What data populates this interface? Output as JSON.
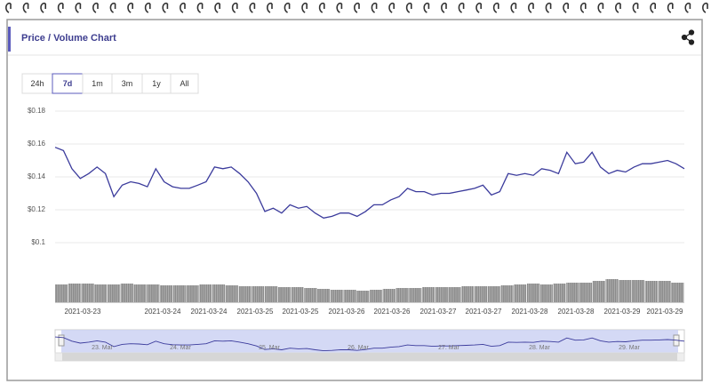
{
  "header": {
    "title": "Price / Volume Chart"
  },
  "range_buttons": {
    "options": [
      "24h",
      "7d",
      "1m",
      "3m",
      "1y",
      "All"
    ],
    "selected": 1
  },
  "chart_data": {
    "type": "line",
    "series": [
      {
        "color": "#3b3b9c",
        "values": [
          0.158,
          0.156,
          0.145,
          0.139,
          0.142,
          0.146,
          0.142,
          0.128,
          0.135,
          0.137,
          0.136,
          0.134,
          0.145,
          0.137,
          0.134,
          0.133,
          0.133,
          0.135,
          0.137,
          0.146,
          0.145,
          0.146,
          0.142,
          0.137,
          0.13,
          0.119,
          0.121,
          0.118,
          0.123,
          0.121,
          0.122,
          0.118,
          0.115,
          0.116,
          0.118,
          0.118,
          0.116,
          0.119,
          0.123,
          0.123,
          0.126,
          0.128,
          0.133,
          0.131,
          0.131,
          0.129,
          0.13,
          0.13,
          0.131,
          0.132,
          0.133,
          0.135,
          0.129,
          0.131,
          0.142,
          0.141,
          0.142,
          0.141,
          0.145,
          0.144,
          0.142,
          0.155,
          0.148,
          0.149,
          0.155,
          0.146,
          0.142,
          0.144,
          0.143,
          0.146,
          0.148,
          0.148,
          0.149,
          0.15,
          0.148,
          0.145
        ]
      }
    ],
    "ylim": [
      0.1,
      0.18
    ],
    "yticks": [
      {
        "value": 0.18,
        "label": "$0.18"
      },
      {
        "value": 0.16,
        "label": "$0.16"
      },
      {
        "value": 0.14,
        "label": "$0.14"
      },
      {
        "value": 0.12,
        "label": "$0.12"
      },
      {
        "value": 0.1,
        "label": "$0.1"
      }
    ],
    "grid": true,
    "x_labels": [
      "2021-03-23",
      "2021-03-24",
      "2021-03-24",
      "2021-03-25",
      "2021-03-25",
      "2021-03-26",
      "2021-03-26",
      "2021-03-27",
      "2021-03-27",
      "2021-03-28",
      "2021-03-28",
      "2021-03-29",
      "2021-03-29"
    ],
    "volume": {
      "color": "#8a8a8a",
      "ylim": [
        0,
        30
      ],
      "values": [
        20,
        21,
        21,
        20,
        20,
        21,
        20,
        20,
        19,
        19,
        19,
        20,
        20,
        19,
        18,
        18,
        18,
        17,
        17,
        16,
        15,
        14,
        14,
        13,
        14,
        15,
        16,
        16,
        17,
        17,
        17,
        18,
        18,
        18,
        19,
        20,
        21,
        20,
        21,
        22,
        22,
        24,
        26,
        25,
        25,
        24,
        24,
        22
      ]
    },
    "navigator_labels": [
      "23. Mar",
      "24. Mar",
      "25. Mar",
      "26. Mar",
      "27. Mar",
      "28. Mar",
      "29. Mar"
    ]
  }
}
